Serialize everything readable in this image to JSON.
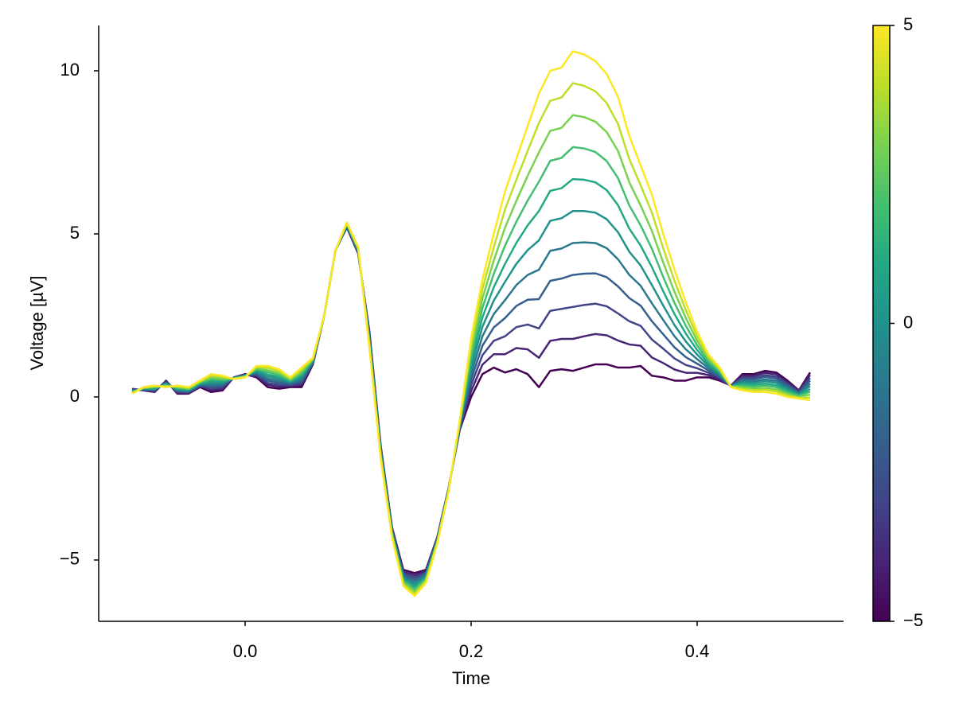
{
  "chart_data": {
    "type": "line",
    "xlabel": "Time",
    "ylabel": "Voltage [µV]",
    "xlim": [
      -0.1296,
      0.5296
    ],
    "ylim": [
      -6.88,
      11.39
    ],
    "xticks": [
      {
        "value": 0,
        "label": "0.0"
      },
      0.2,
      0.4
    ],
    "yticks": [
      {
        "value": -5,
        "label": "−5"
      },
      0,
      5,
      10
    ],
    "colorbar": {
      "lim": [
        -5,
        5
      ],
      "ticks": [
        {
          "value": -5,
          "label": "−5"
        },
        0,
        5
      ]
    },
    "x": [
      -0.1,
      -0.09,
      -0.08,
      -0.07,
      -0.06,
      -0.05,
      -0.04,
      -0.03,
      -0.02,
      -0.01,
      0,
      0.01,
      0.02,
      0.03,
      0.04,
      0.05,
      0.06,
      0.07,
      0.08,
      0.09,
      0.1,
      0.11,
      0.12,
      0.13,
      0.14,
      0.15,
      0.16,
      0.17,
      0.18,
      0.19,
      0.2,
      0.21,
      0.22,
      0.23,
      0.24,
      0.25,
      0.26,
      0.27,
      0.28,
      0.29,
      0.3,
      0.31,
      0.32,
      0.33,
      0.34,
      0.35,
      0.36,
      0.37,
      0.38,
      0.39,
      0.4,
      0.41,
      0.42,
      0.43,
      0.44,
      0.45,
      0.46,
      0.47,
      0.48,
      0.49,
      0.5
    ],
    "series": [
      {
        "color": "#440154",
        "values": [
          0.25,
          0.2,
          0.15,
          0.5,
          0.1,
          0.1,
          0.3,
          0.15,
          0.2,
          0.6,
          0.7,
          0.6,
          0.3,
          0.25,
          0.3,
          0.3,
          1.0,
          2.5,
          4.5,
          5.2,
          4.4,
          2.0,
          -1.5,
          -4.0,
          -5.3,
          -5.4,
          -5.3,
          -4.3,
          -2.8,
          -1.0,
          0,
          0.7,
          0.9,
          0.75,
          0.85,
          0.7,
          0.3,
          0.8,
          0.85,
          0.8,
          0.9,
          1.0,
          1.0,
          0.9,
          0.9,
          0.95,
          0.65,
          0.6,
          0.5,
          0.5,
          0.6,
          0.6,
          0.5,
          0.35,
          0.7,
          0.7,
          0.8,
          0.75,
          0.5,
          0.2,
          0.75
        ]
      },
      {
        "color": "#482475",
        "values": [
          0.24,
          0.21,
          0.17,
          0.48,
          0.13,
          0.12,
          0.32,
          0.21,
          0.25,
          0.6,
          0.69,
          0.64,
          0.37,
          0.31,
          0.33,
          0.36,
          1.02,
          2.5,
          4.5,
          5.22,
          4.42,
          1.95,
          -1.54,
          -4.03,
          -5.35,
          -5.47,
          -5.34,
          -4.32,
          -2.81,
          -0.97,
          0.18,
          0.99,
          1.31,
          1.31,
          1.5,
          1.46,
          1.2,
          1.72,
          1.78,
          1.78,
          1.86,
          1.93,
          1.89,
          1.73,
          1.61,
          1.57,
          1.21,
          1.04,
          0.84,
          0.74,
          0.74,
          0.67,
          0.54,
          0.35,
          0.65,
          0.65,
          0.74,
          0.69,
          0.45,
          0.18,
          0.67
        ]
      },
      {
        "color": "#414487",
        "values": [
          0.22,
          0.22,
          0.19,
          0.46,
          0.15,
          0.14,
          0.34,
          0.26,
          0.29,
          0.59,
          0.68,
          0.67,
          0.43,
          0.37,
          0.36,
          0.42,
          1.04,
          2.5,
          4.5,
          5.23,
          4.44,
          1.9,
          -1.58,
          -4.06,
          -5.4,
          -5.54,
          -5.38,
          -4.34,
          -2.82,
          -0.94,
          0.36,
          1.28,
          1.72,
          1.86,
          2.14,
          2.22,
          2.1,
          2.64,
          2.7,
          2.76,
          2.82,
          2.86,
          2.78,
          2.56,
          2.32,
          2.18,
          1.76,
          1.48,
          1.18,
          0.98,
          0.88,
          0.74,
          0.58,
          0.34,
          0.6,
          0.59,
          0.67,
          0.62,
          0.4,
          0.15,
          0.58
        ]
      },
      {
        "color": "#355f8d",
        "values": [
          0.21,
          0.23,
          0.21,
          0.44,
          0.18,
          0.16,
          0.36,
          0.32,
          0.34,
          0.59,
          0.67,
          0.71,
          0.5,
          0.43,
          0.39,
          0.48,
          1.06,
          2.5,
          4.5,
          5.25,
          4.46,
          1.85,
          -1.62,
          -4.09,
          -5.45,
          -5.61,
          -5.42,
          -4.36,
          -2.83,
          -0.91,
          0.54,
          1.57,
          2.13,
          2.42,
          2.79,
          2.98,
          3.0,
          3.56,
          3.63,
          3.74,
          3.78,
          3.79,
          3.67,
          3.39,
          3.03,
          2.8,
          2.32,
          1.92,
          1.52,
          1.22,
          1.02,
          0.81,
          0.62,
          0.34,
          0.55,
          0.54,
          0.61,
          0.56,
          0.35,
          0.13,
          0.5
        ]
      },
      {
        "color": "#2a788e",
        "values": [
          0.19,
          0.24,
          0.23,
          0.42,
          0.2,
          0.18,
          0.38,
          0.37,
          0.38,
          0.58,
          0.66,
          0.74,
          0.56,
          0.49,
          0.42,
          0.54,
          1.08,
          2.5,
          4.5,
          5.26,
          4.48,
          1.8,
          -1.66,
          -4.12,
          -5.5,
          -5.68,
          -5.46,
          -4.38,
          -2.84,
          -0.88,
          0.72,
          1.86,
          2.54,
          2.97,
          3.43,
          3.74,
          3.9,
          4.48,
          4.55,
          4.72,
          4.74,
          4.72,
          4.56,
          4.22,
          3.74,
          3.41,
          2.87,
          2.36,
          1.86,
          1.46,
          1.16,
          0.88,
          0.66,
          0.33,
          0.5,
          0.48,
          0.54,
          0.49,
          0.3,
          0.1,
          0.41
        ]
      },
      {
        "color": "#21918c",
        "values": [
          0.18,
          0.25,
          0.25,
          0.4,
          0.23,
          0.2,
          0.4,
          0.43,
          0.43,
          0.58,
          0.65,
          0.78,
          0.63,
          0.55,
          0.45,
          0.6,
          1.1,
          2.5,
          4.5,
          5.28,
          4.5,
          1.75,
          -1.7,
          -4.15,
          -5.55,
          -5.75,
          -5.5,
          -4.4,
          -2.85,
          -0.85,
          0.9,
          2.15,
          2.95,
          3.53,
          4.08,
          4.5,
          4.8,
          5.4,
          5.48,
          5.7,
          5.7,
          5.65,
          5.45,
          5.05,
          4.45,
          4.03,
          3.43,
          2.8,
          2.2,
          1.7,
          1.3,
          0.95,
          0.7,
          0.33,
          0.45,
          0.43,
          0.48,
          0.43,
          0.25,
          0.08,
          0.33
        ]
      },
      {
        "color": "#22a884",
        "values": [
          0.16,
          0.26,
          0.27,
          0.38,
          0.25,
          0.22,
          0.42,
          0.48,
          0.47,
          0.57,
          0.64,
          0.81,
          0.69,
          0.61,
          0.48,
          0.66,
          1.12,
          2.5,
          4.5,
          5.29,
          4.52,
          1.7,
          -1.74,
          -4.18,
          -5.6,
          -5.82,
          -5.54,
          -4.42,
          -2.86,
          -0.82,
          1.08,
          2.44,
          3.36,
          4.08,
          4.72,
          5.26,
          5.7,
          6.32,
          6.4,
          6.68,
          6.66,
          6.58,
          6.34,
          5.88,
          5.16,
          4.64,
          3.98,
          3.24,
          2.54,
          1.94,
          1.44,
          1.02,
          0.74,
          0.32,
          0.4,
          0.37,
          0.41,
          0.36,
          0.2,
          0.05,
          0.24
        ]
      },
      {
        "color": "#44bf70",
        "values": [
          0.15,
          0.27,
          0.29,
          0.36,
          0.28,
          0.24,
          0.44,
          0.54,
          0.52,
          0.57,
          0.63,
          0.85,
          0.76,
          0.67,
          0.51,
          0.72,
          1.14,
          2.5,
          4.5,
          5.31,
          4.54,
          1.65,
          -1.78,
          -4.21,
          -5.65,
          -5.89,
          -5.58,
          -4.44,
          -2.87,
          -0.79,
          1.26,
          2.73,
          3.77,
          4.64,
          5.37,
          6.02,
          6.6,
          7.24,
          7.33,
          7.66,
          7.62,
          7.51,
          7.23,
          6.71,
          5.87,
          5.26,
          4.54,
          3.68,
          2.88,
          2.18,
          1.58,
          1.09,
          0.78,
          0.32,
          0.35,
          0.32,
          0.35,
          0.3,
          0.15,
          0.03,
          0.16
        ]
      },
      {
        "color": "#7ad151",
        "values": [
          0.13,
          0.28,
          0.31,
          0.34,
          0.3,
          0.26,
          0.46,
          0.59,
          0.56,
          0.56,
          0.62,
          0.88,
          0.82,
          0.73,
          0.54,
          0.78,
          1.16,
          2.5,
          4.5,
          5.32,
          4.56,
          1.6,
          -1.82,
          -4.24,
          -5.7,
          -5.96,
          -5.62,
          -4.46,
          -2.88,
          -0.76,
          1.44,
          3.02,
          4.18,
          5.19,
          6.01,
          6.78,
          7.5,
          8.16,
          8.25,
          8.64,
          8.58,
          8.44,
          8.12,
          7.54,
          6.58,
          5.87,
          5.09,
          4.12,
          3.22,
          2.42,
          1.72,
          1.16,
          0.82,
          0.31,
          0.3,
          0.26,
          0.28,
          0.23,
          0.1,
          0.0,
          0.07
        ]
      },
      {
        "color": "#bddf26",
        "values": [
          0.12,
          0.29,
          0.33,
          0.32,
          0.33,
          0.28,
          0.48,
          0.65,
          0.61,
          0.56,
          0.61,
          0.92,
          0.89,
          0.79,
          0.57,
          0.84,
          1.18,
          2.5,
          4.5,
          5.34,
          4.58,
          1.55,
          -1.86,
          -4.27,
          -5.75,
          -6.03,
          -5.66,
          -4.48,
          -2.89,
          -0.73,
          1.62,
          3.31,
          4.59,
          5.75,
          6.66,
          7.54,
          8.4,
          9.08,
          9.18,
          9.62,
          9.54,
          9.37,
          9.01,
          8.37,
          7.29,
          6.49,
          5.65,
          4.56,
          3.56,
          2.66,
          1.86,
          1.23,
          0.86,
          0.31,
          0.25,
          0.21,
          0.22,
          0.17,
          0.05,
          -0.03,
          -0.02
        ]
      },
      {
        "color": "#fde725",
        "values": [
          0.1,
          0.3,
          0.35,
          0.3,
          0.35,
          0.3,
          0.5,
          0.7,
          0.65,
          0.55,
          0.6,
          0.95,
          0.95,
          0.85,
          0.6,
          0.9,
          1.2,
          2.5,
          4.5,
          5.35,
          4.6,
          1.5,
          -1.9,
          -4.3,
          -5.8,
          -6.1,
          -5.7,
          -4.5,
          -2.9,
          -0.7,
          1.8,
          3.6,
          5.0,
          6.3,
          7.3,
          8.3,
          9.3,
          10.0,
          10.1,
          10.6,
          10.5,
          10.3,
          9.9,
          9.2,
          8.0,
          7.1,
          6.2,
          5.0,
          3.9,
          2.9,
          2.0,
          1.3,
          0.9,
          0.3,
          0.2,
          0.15,
          0.15,
          0.1,
          0.0,
          -0.05,
          -0.1
        ]
      }
    ]
  }
}
